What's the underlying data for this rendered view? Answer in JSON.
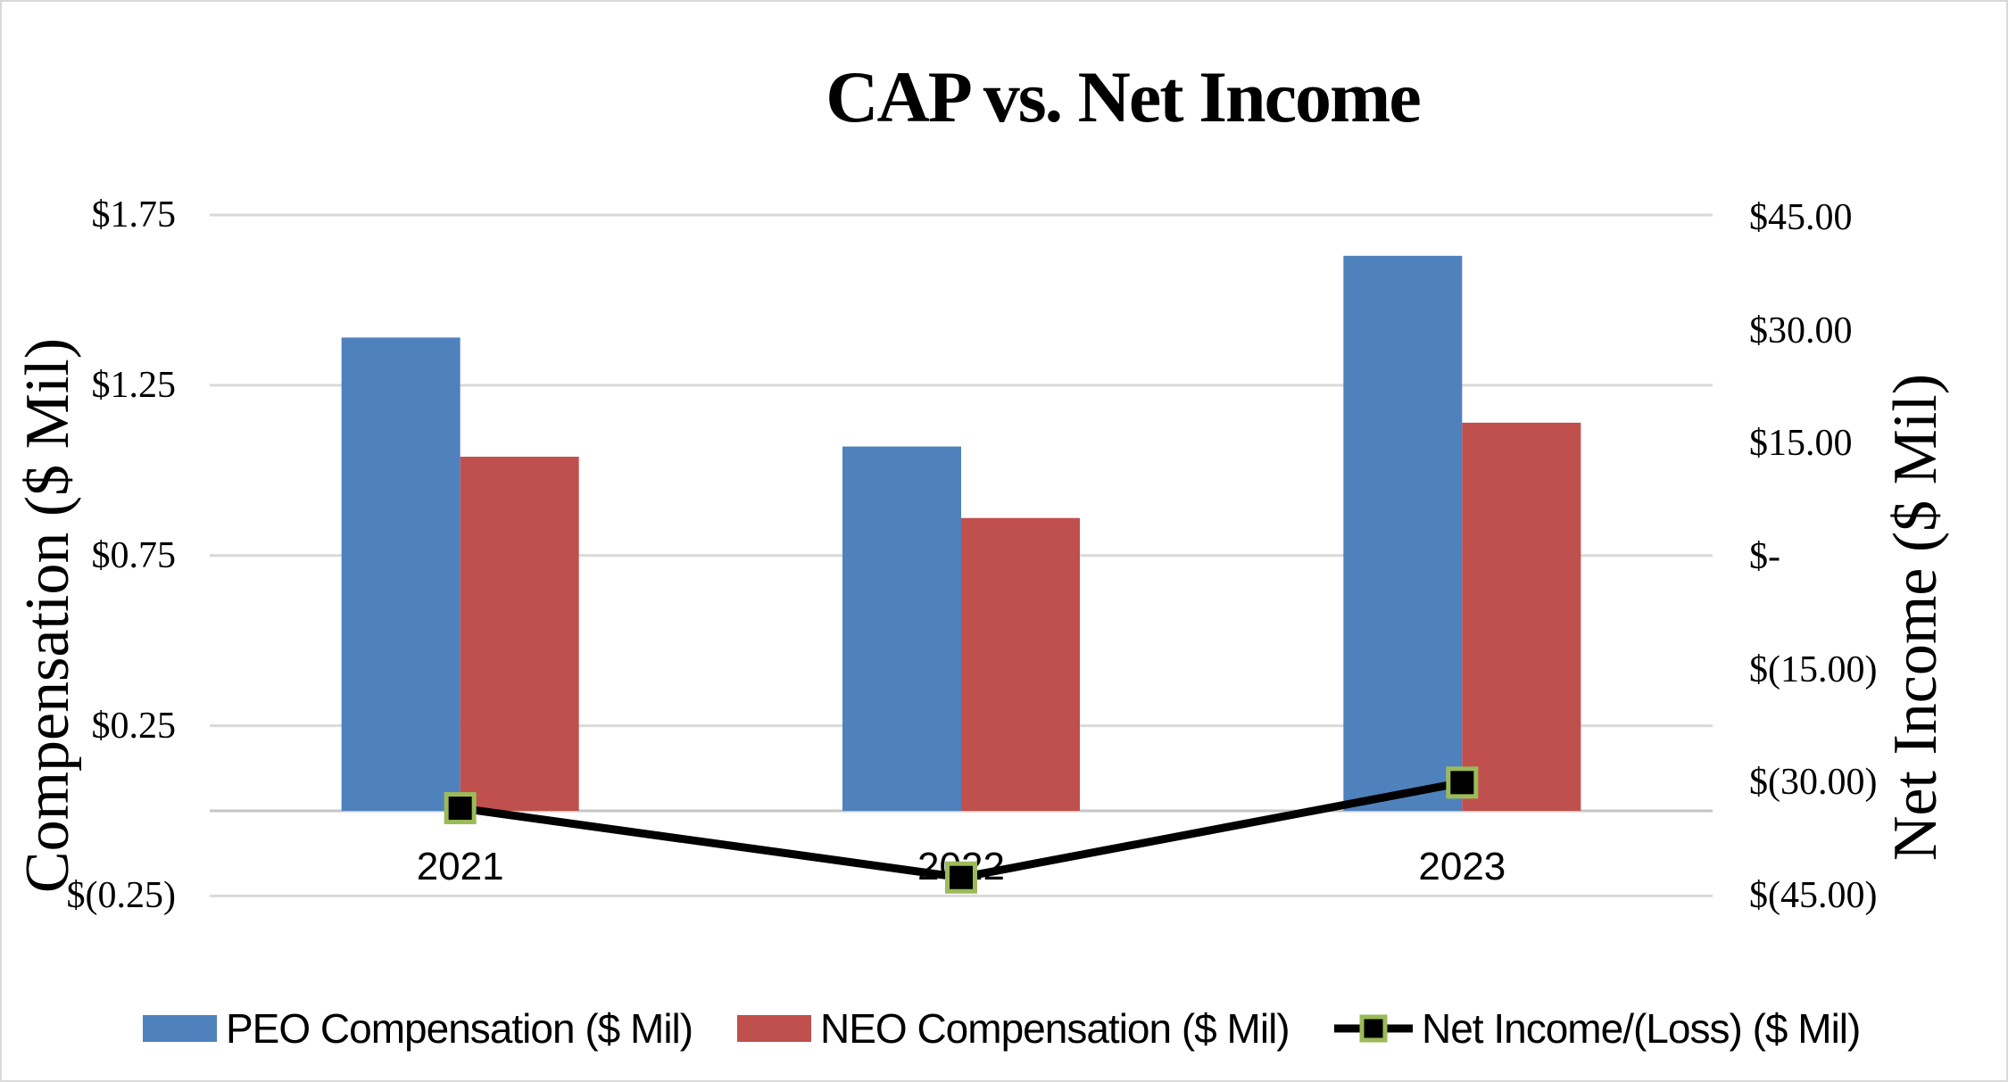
{
  "chart_data": {
    "type": "combo-bar-line",
    "title": "CAP vs. Net Income",
    "categories": [
      "2021",
      "2022",
      "2023"
    ],
    "series": [
      {
        "name": "PEO Compensation ($ Mil)",
        "type": "bar",
        "axis": "left",
        "color": "#4F81BD",
        "values": [
          1.39,
          1.07,
          1.63
        ]
      },
      {
        "name": "NEO Compensation ($ Mil)",
        "type": "bar",
        "axis": "left",
        "color": "#C0504D",
        "values": [
          1.04,
          0.86,
          1.14
        ]
      },
      {
        "name": "Net Income/(Loss) ($ Mil)",
        "type": "line",
        "axis": "right",
        "line_color": "#000000",
        "marker_fill": "#000000",
        "marker_border": "#9BBB59",
        "values": [
          -33.4,
          -42.6,
          -30.0
        ]
      }
    ],
    "left_axis": {
      "title": "Compensation ($ Mil)",
      "range": [
        -0.25,
        1.75
      ],
      "ticks": [
        {
          "label": "$1.75",
          "value": 1.75
        },
        {
          "label": "$1.25",
          "value": 1.25
        },
        {
          "label": "$0.75",
          "value": 0.75
        },
        {
          "label": "$0.25",
          "value": 0.25
        },
        {
          "label": "$(0.25)",
          "value": -0.25
        }
      ]
    },
    "right_axis": {
      "title": "Net Income ($ Mil)",
      "range": [
        -45,
        45
      ],
      "ticks": [
        {
          "label": "$45.00",
          "value": 45
        },
        {
          "label": "$30.00",
          "value": 30
        },
        {
          "label": "$15.00",
          "value": 15
        },
        {
          "label": "$-",
          "value": 0
        },
        {
          "label": "$(15.00)",
          "value": -15
        },
        {
          "label": "$(30.00)",
          "value": -30
        },
        {
          "label": "$(45.00)",
          "value": -45
        }
      ]
    },
    "grid": {
      "show": true,
      "color": "#D9D9D9",
      "zero_line_color": "#C6C6C6"
    },
    "legend": {
      "position": "bottom",
      "items": [
        "PEO Compensation ($ Mil)",
        "NEO Compensation ($ Mil)",
        "Net Income/(Loss) ($ Mil)"
      ]
    },
    "background": "#FFFFFF",
    "border_color": "#D9D9D9"
  }
}
